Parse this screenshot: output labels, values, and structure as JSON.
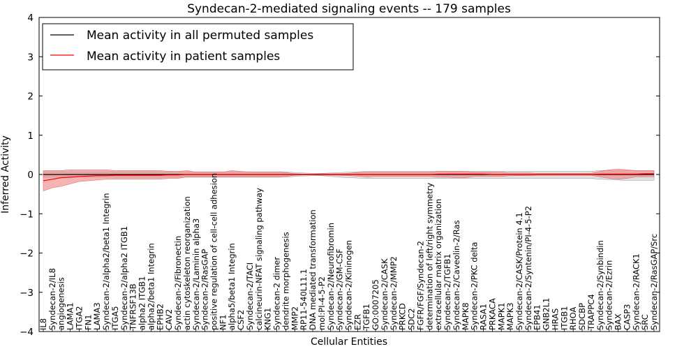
{
  "chart_data": {
    "type": "line",
    "title": "Syndecan-2-mediated signaling events -- 179 samples",
    "xlabel": "Cellular Entities",
    "ylabel": "Inferred Activity",
    "ylim": [
      -4,
      4
    ],
    "yticks": [
      "4",
      "3",
      "2",
      "1",
      "0",
      "−1",
      "−2",
      "−3",
      "−4"
    ],
    "ytick_values": [
      4,
      3,
      2,
      1,
      0,
      -1,
      -2,
      -3,
      -4
    ],
    "legend_position": "top-left",
    "colors": {
      "permuted": "#000000",
      "patient": "#ff0000",
      "patient_band": "#f08080",
      "permuted_band": "#cccccc"
    },
    "categories": [
      "IL8",
      "Syndecan-2/IL8",
      "angiogenesis",
      "LAMA1",
      "ITGA2",
      "FN1",
      "LAMA3",
      "Syndecan-2/alpha2/beta1 Integrin",
      "ITGA5",
      "Syndecan-2/alpha2 ITGB1",
      "TNFRSF13B",
      "alpha2 ITGB1",
      "alpha2/beta1 Integrin",
      "EPHB2",
      "CAV2",
      "Syndecan-2/Fibronectin",
      "actin cytoskeleton reorganization",
      "Syndecan-2/Laminin alpha3",
      "Syndecan-2/RasGAP",
      "positive regulation of cell-cell adhesion",
      "NF1",
      "alpha5/beta1 Integrin",
      "CSF2",
      "Syndecan-2/TACI",
      "calcineurin-NFAT signaling pathway",
      "KNG1",
      "Syndecan-2 dimer",
      "dendrite morphogenesis",
      "MMP2",
      "RP11-540L11.1",
      "DNA mediated transformation",
      "mol:PI-4-5-P2",
      "Syndecan-2/Neurofibromin",
      "Syndecan-2/GM-CSF",
      "Syndecan-2/Kininogen",
      "EZR",
      "TGFB1",
      "GO:0007205",
      "Syndecan-2/CASK",
      "Syndecan-2/MMP2",
      "PRKCD",
      "SDC2",
      "FGFR/FGF/Syndecan-2",
      "determination of left/right symmetry",
      "extracellular matrix organization",
      "Syndecan-2/TGFB1",
      "Syndecan-2/Caveolin-2/Ras",
      "MAPK8",
      "Syndecan-2/PKC delta",
      "RASA1",
      "PRKACA",
      "MAPK1",
      "MAPK3",
      "Syndecan-2/CASK/Protein 4.1",
      "Syndecan-2/Syntenin/PI-4-5-P2",
      "EPB41",
      "GNB2L1",
      "HRAS",
      "ITGB1",
      "RHOA",
      "SDCBP",
      "TRAPPC4",
      "Syndecan-2/Synbindin",
      "Syndecan-2/Ezrin",
      "BAX",
      "CASP3",
      "Syndecan-2/RACK1",
      "SRC",
      "Syndecan-2/RasGAP/Src"
    ],
    "series": [
      {
        "name": "Mean activity in all permuted samples",
        "color": "#000000",
        "values": [
          0,
          0,
          0,
          0,
          0,
          0,
          0,
          0,
          0,
          0,
          0,
          0,
          0,
          0,
          0,
          0,
          0,
          0,
          0,
          0,
          0,
          0,
          0,
          0,
          0,
          0,
          0,
          0,
          0,
          0,
          0,
          0,
          0,
          0,
          0,
          0,
          0,
          0,
          0,
          0,
          0,
          0,
          0,
          0,
          0,
          0,
          0,
          0,
          0,
          0,
          0,
          0,
          0,
          0,
          0,
          0,
          0,
          0,
          0,
          0,
          0,
          0,
          0,
          0,
          0,
          0,
          0,
          0,
          0
        ],
        "band_upper": [
          0.07,
          0.07,
          0.07,
          0.07,
          0.07,
          0.07,
          0.07,
          0.07,
          0.07,
          0.07,
          0.07,
          0.07,
          0.07,
          0.07,
          0.07,
          0.07,
          0.07,
          0.07,
          0.07,
          0.07,
          0.07,
          0.07,
          0.07,
          0.07,
          0.07,
          0.07,
          0.07,
          0.07,
          0.05,
          0.04,
          0.03,
          0.03,
          0.04,
          0.05,
          0.06,
          0.07,
          0.08,
          0.08,
          0.08,
          0.08,
          0.08,
          0.08,
          0.08,
          0.08,
          0.08,
          0.08,
          0.08,
          0.08,
          0.08,
          0.08,
          0.08,
          0.08,
          0.08,
          0.08,
          0.08,
          0.08,
          0.08,
          0.08,
          0.08,
          0.08,
          0.08,
          0.08,
          0.1,
          0.1,
          0.1,
          0.1,
          0.1,
          0.1,
          0.1
        ],
        "band_lower": [
          -0.07,
          -0.07,
          -0.07,
          -0.07,
          -0.07,
          -0.07,
          -0.07,
          -0.07,
          -0.07,
          -0.07,
          -0.07,
          -0.07,
          -0.07,
          -0.07,
          -0.07,
          -0.07,
          -0.07,
          -0.07,
          -0.07,
          -0.07,
          -0.07,
          -0.07,
          -0.07,
          -0.07,
          -0.07,
          -0.07,
          -0.07,
          -0.07,
          -0.05,
          -0.04,
          -0.03,
          -0.03,
          -0.05,
          -0.07,
          -0.08,
          -0.09,
          -0.1,
          -0.1,
          -0.1,
          -0.1,
          -0.1,
          -0.1,
          -0.1,
          -0.1,
          -0.1,
          -0.1,
          -0.1,
          -0.1,
          -0.1,
          -0.1,
          -0.1,
          -0.1,
          -0.1,
          -0.1,
          -0.1,
          -0.1,
          -0.1,
          -0.1,
          -0.1,
          -0.1,
          -0.1,
          -0.1,
          -0.12,
          -0.13,
          -0.14,
          -0.15,
          -0.15,
          -0.15,
          -0.15
        ]
      },
      {
        "name": "Mean activity in patient samples",
        "color": "#ff0000",
        "values": [
          -0.16,
          -0.12,
          -0.08,
          -0.07,
          -0.05,
          -0.04,
          -0.03,
          -0.03,
          -0.02,
          -0.02,
          -0.02,
          -0.02,
          -0.02,
          -0.02,
          -0.01,
          -0.01,
          0,
          0,
          0,
          0,
          0,
          0,
          0,
          0,
          0,
          0,
          0,
          0,
          0,
          0,
          0,
          0,
          0,
          0,
          0,
          0,
          0,
          0,
          0,
          0,
          0,
          0,
          0,
          0,
          0.01,
          0.01,
          0.01,
          0.01,
          0.01,
          0.01,
          0,
          0,
          0,
          0,
          0,
          0,
          0,
          0,
          0,
          0,
          0,
          0,
          0.01,
          0.01,
          0.01,
          0.01,
          0.01,
          0.02,
          0.02
        ],
        "band_upper": [
          0.1,
          0.1,
          0.1,
          0.12,
          0.12,
          0.12,
          0.12,
          0.12,
          0.1,
          0.1,
          0.1,
          0.1,
          0.1,
          0.1,
          0.08,
          0.08,
          0.1,
          0.06,
          0.06,
          0.06,
          0.06,
          0.1,
          0.08,
          0.06,
          0.06,
          0.06,
          0.06,
          0.05,
          0.02,
          0.01,
          0.01,
          0.02,
          0.02,
          0.02,
          0.03,
          0.05,
          0.06,
          0.06,
          0.06,
          0.06,
          0.06,
          0.06,
          0.06,
          0.06,
          0.08,
          0.08,
          0.08,
          0.08,
          0.06,
          0.06,
          0.06,
          0.06,
          0.04,
          0.04,
          0.04,
          0.03,
          0.03,
          0.03,
          0.03,
          0.03,
          0.03,
          0.03,
          0.08,
          0.12,
          0.14,
          0.12,
          0.1,
          0.1,
          0.1
        ],
        "band_lower": [
          -0.42,
          -0.34,
          -0.3,
          -0.24,
          -0.18,
          -0.16,
          -0.14,
          -0.12,
          -0.12,
          -0.12,
          -0.12,
          -0.12,
          -0.12,
          -0.12,
          -0.1,
          -0.1,
          -0.06,
          -0.06,
          -0.06,
          -0.06,
          -0.06,
          -0.06,
          -0.06,
          -0.06,
          -0.06,
          -0.06,
          -0.06,
          -0.05,
          -0.02,
          -0.01,
          -0.01,
          -0.02,
          -0.02,
          -0.02,
          -0.03,
          -0.04,
          -0.06,
          -0.05,
          -0.05,
          -0.05,
          -0.05,
          -0.05,
          -0.05,
          -0.05,
          -0.07,
          -0.07,
          -0.08,
          -0.08,
          -0.05,
          -0.05,
          -0.05,
          -0.05,
          -0.03,
          -0.03,
          -0.03,
          -0.02,
          -0.02,
          -0.02,
          -0.02,
          -0.02,
          -0.02,
          -0.02,
          -0.06,
          -0.1,
          -0.12,
          -0.1,
          -0.06,
          -0.06,
          -0.06
        ]
      }
    ]
  }
}
